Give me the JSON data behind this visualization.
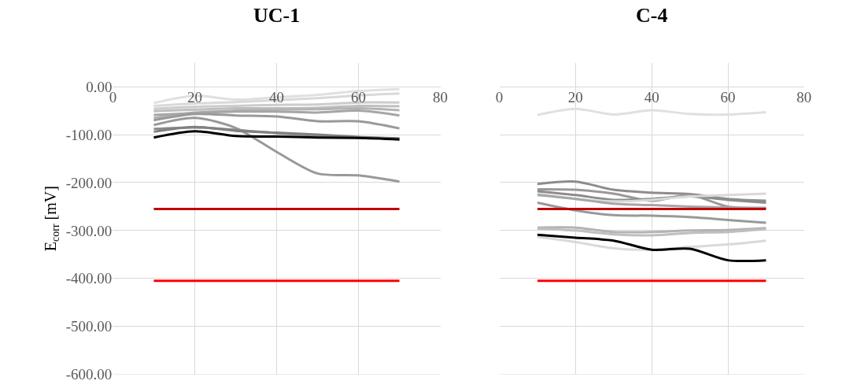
{
  "chart_data": [
    {
      "type": "line",
      "title": "UC-1",
      "ylabel": "E$_{corr}$ [mV]",
      "x": [
        10,
        20,
        30,
        40,
        50,
        60,
        70
      ],
      "xlim": [
        0,
        80
      ],
      "xticks": [
        0,
        20,
        40,
        60,
        80
      ],
      "ylim": [
        -600,
        50
      ],
      "yticks": [
        {
          "value": 0,
          "label": "0.00"
        },
        {
          "value": -100,
          "label": "-100.00"
        },
        {
          "value": -200,
          "label": "-200.00"
        },
        {
          "value": -300,
          "label": "-300.00"
        },
        {
          "value": -400,
          "label": "-400.00"
        },
        {
          "value": -500,
          "label": "-500.00"
        },
        {
          "value": -600,
          "label": "-600.00"
        }
      ],
      "grid": true,
      "marker": "none",
      "line_style": "solid",
      "series": [
        {
          "color": "#e0e0e0",
          "values": [
            -34,
            -19,
            -27,
            -22,
            -17,
            -9,
            -5
          ]
        },
        {
          "color": "#d9d9d9",
          "values": [
            -40,
            -35,
            -32,
            -28,
            -24,
            -18,
            -14
          ]
        },
        {
          "color": "#cccccc",
          "values": [
            -46,
            -42,
            -40,
            -38,
            -37,
            -33,
            -33
          ]
        },
        {
          "color": "#bfbfbf",
          "values": [
            -51,
            -48,
            -45,
            -45,
            -44,
            -40,
            -41
          ]
        },
        {
          "color": "#b3b3b3",
          "values": [
            -65,
            -54,
            -50,
            -48,
            -47,
            -45,
            -49
          ]
        },
        {
          "color": "#a6a6a6",
          "values": [
            -59,
            -55,
            -52,
            -52,
            -54,
            -50,
            -60
          ]
        },
        {
          "color": "#999999",
          "values": [
            -70,
            -57,
            -60,
            -62,
            -72,
            -72,
            -87
          ]
        },
        {
          "color": "#999999",
          "values": [
            -80,
            -65,
            -86,
            -136,
            -181,
            -185,
            -198
          ]
        },
        {
          "color": "#8c8c8c",
          "values": [
            -88,
            -85,
            -90,
            -97,
            -102,
            -106,
            -108
          ]
        },
        {
          "color": "#808080",
          "values": [
            -94,
            -84,
            -92,
            -96,
            -100,
            -105,
            -108
          ]
        },
        {
          "color": "#000000",
          "values": [
            -106,
            -93,
            -103,
            -104,
            -106,
            -107,
            -110
          ]
        },
        {
          "color": "#c00000",
          "values": [
            -255,
            -255,
            -255,
            -255,
            -255,
            -255,
            -255
          ]
        },
        {
          "color": "#ff0000",
          "values": [
            -405,
            -405,
            -405,
            -405,
            -405,
            -405,
            -405
          ]
        }
      ]
    },
    {
      "type": "line",
      "title": "C-4",
      "x": [
        10,
        20,
        30,
        40,
        50,
        60,
        70
      ],
      "xlim": [
        0,
        80
      ],
      "xticks": [
        0,
        20,
        40,
        60,
        80
      ],
      "ylim": [
        -600,
        50
      ],
      "yticks": [
        {
          "value": 0,
          "label": null
        },
        {
          "value": -100,
          "label": null
        },
        {
          "value": -200,
          "label": null
        },
        {
          "value": -300,
          "label": null
        },
        {
          "value": -400,
          "label": null
        },
        {
          "value": -500,
          "label": null
        },
        {
          "value": -600,
          "label": null
        }
      ],
      "tick_labels": "x",
      "grid": true,
      "marker": "none",
      "line_style": "solid",
      "series": [
        {
          "color": "#e0e0e0",
          "values": [
            -59,
            -46,
            -58,
            -49,
            -57,
            -58,
            -53
          ]
        },
        {
          "color": "#8c8c8c",
          "values": [
            -203,
            -198,
            -215,
            -221,
            -224,
            -234,
            -238
          ]
        },
        {
          "color": "#999999",
          "values": [
            -214,
            -215,
            -223,
            -238,
            -226,
            -250,
            -253
          ]
        },
        {
          "color": "#8c8c8c",
          "values": [
            -218,
            -226,
            -236,
            -234,
            -229,
            -236,
            -242
          ]
        },
        {
          "color": "#d9d9d9",
          "values": [
            -223,
            -234,
            -239,
            -236,
            -229,
            -226,
            -223
          ]
        },
        {
          "color": "#a6a6a6",
          "values": [
            -226,
            -234,
            -244,
            -247,
            -250,
            -252,
            -253
          ]
        },
        {
          "color": "#999999",
          "values": [
            -242,
            -258,
            -268,
            -269,
            -272,
            -278,
            -284
          ]
        },
        {
          "color": "#b3b3b3",
          "values": [
            -294,
            -294,
            -303,
            -303,
            -300,
            -299,
            -295
          ]
        },
        {
          "color": "#bfbfbf",
          "values": [
            -296,
            -300,
            -308,
            -310,
            -305,
            -303,
            -297
          ]
        },
        {
          "color": "#d9d9d9",
          "values": [
            -313,
            -324,
            -337,
            -340,
            -334,
            -329,
            -321
          ]
        },
        {
          "color": "#000000",
          "values": [
            -309,
            -315,
            -321,
            -340,
            -338,
            -362,
            -362
          ]
        },
        {
          "color": "#c00000",
          "values": [
            -255,
            -255,
            -255,
            -255,
            -255,
            -255,
            -255
          ]
        },
        {
          "color": "#ff0000",
          "values": [
            -405,
            -405,
            -405,
            -405,
            -405,
            -405,
            -405
          ]
        }
      ]
    }
  ]
}
